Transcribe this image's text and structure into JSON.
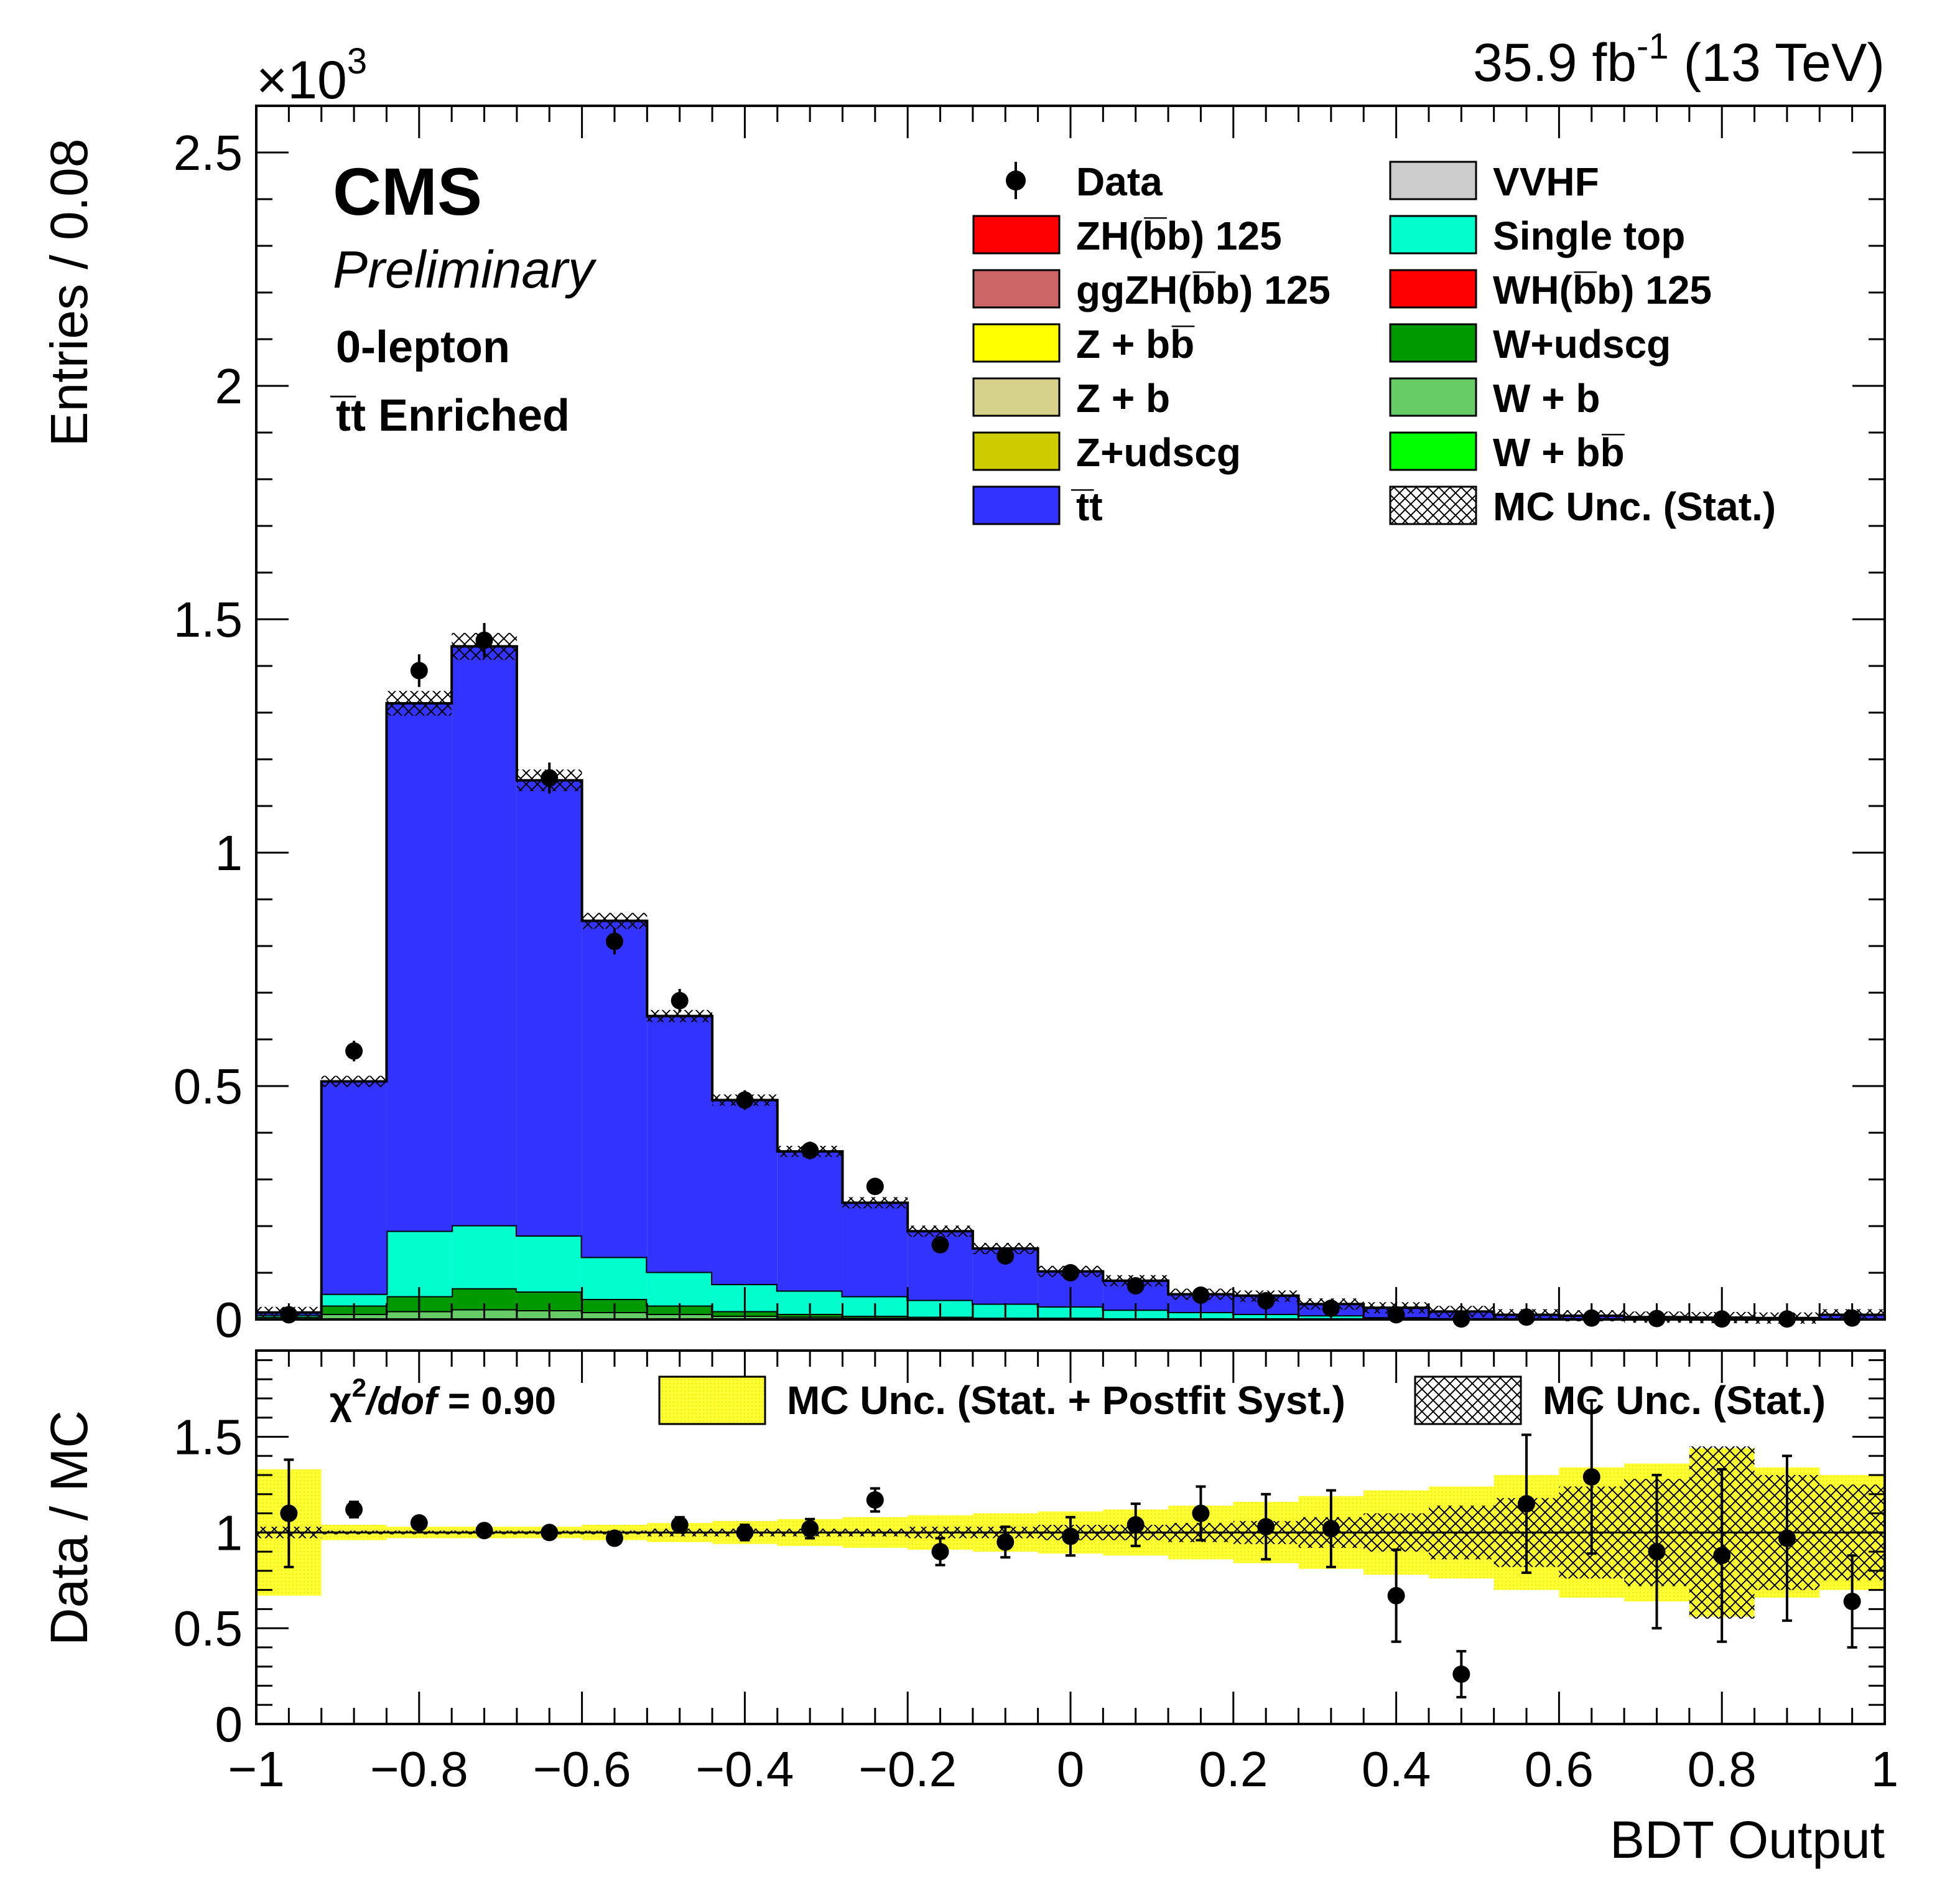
{
  "header": {
    "lumi_label": "35.9 fb",
    "lumi_exp": "-1",
    "energy_label": "(13 TeV)",
    "exponent_base": "×10",
    "exponent_power": "3"
  },
  "annotations": {
    "experiment": "CMS",
    "status": "Preliminary",
    "channel": "0-lepton",
    "region": "t̅t Enriched"
  },
  "chart_data": [
    {
      "type": "bar",
      "stacked": true,
      "xlabel": "BDT Output",
      "ylabel": "Entries / 0.08",
      "xlim": [
        -1,
        1
      ],
      "ylim": [
        0,
        2.6
      ],
      "y_scale_factor": "×10^3",
      "yticks": [
        "0",
        "0.5",
        "1",
        "1.5",
        "2",
        "2.5"
      ],
      "xticks": [
        "−1",
        "−0.8",
        "−0.6",
        "−0.4",
        "−0.2",
        "0",
        "0.2",
        "0.4",
        "0.6",
        "0.8",
        "1"
      ],
      "bin_edges": [
        -1.0,
        -0.92,
        -0.84,
        -0.76,
        -0.68,
        -0.6,
        -0.52,
        -0.44,
        -0.36,
        -0.28,
        -0.2,
        -0.12,
        -0.04,
        0.04,
        0.12,
        0.2,
        0.28,
        0.36,
        0.44,
        0.52,
        0.6,
        0.68,
        0.76,
        0.84,
        0.92,
        1.0
      ],
      "series": [
        {
          "name": "W + b",
          "color": "#66cc66",
          "values": [
            0.002,
            0.012,
            0.018,
            0.022,
            0.02,
            0.016,
            0.012,
            0.008,
            0.006,
            0.004,
            0.003,
            0.002,
            0.002,
            0.001,
            0.001,
            0.001,
            0.001,
            0,
            0,
            0,
            0,
            0,
            0,
            0,
            0
          ]
        },
        {
          "name": "W+udscg",
          "color": "#009900",
          "values": [
            0.004,
            0.018,
            0.032,
            0.045,
            0.04,
            0.028,
            0.018,
            0.01,
            0.006,
            0.004,
            0.003,
            0.002,
            0.002,
            0.001,
            0.001,
            0.001,
            0.001,
            0,
            0,
            0,
            0,
            0,
            0,
            0,
            0
          ]
        },
        {
          "name": "Single top",
          "color": "#00ffcc",
          "values": [
            0.004,
            0.025,
            0.14,
            0.135,
            0.12,
            0.09,
            0.072,
            0.058,
            0.05,
            0.042,
            0.036,
            0.03,
            0.024,
            0.019,
            0.014,
            0.01,
            0.007,
            0.005,
            0.003,
            0.002,
            0.002,
            0.001,
            0.001,
            0.001,
            0.001
          ]
        },
        {
          "name": "t̅t",
          "color": "#3333ff",
          "values": [
            0.005,
            0.455,
            1.13,
            1.24,
            0.975,
            0.72,
            0.548,
            0.394,
            0.298,
            0.2,
            0.147,
            0.118,
            0.075,
            0.062,
            0.038,
            0.039,
            0.024,
            0.02,
            0.014,
            0.008,
            0.006,
            0.004,
            0.003,
            0.002,
            0.009
          ]
        }
      ],
      "mc_total": [
        0.015,
        0.51,
        1.32,
        1.442,
        1.155,
        0.854,
        0.65,
        0.47,
        0.36,
        0.25,
        0.189,
        0.152,
        0.103,
        0.083,
        0.054,
        0.05,
        0.033,
        0.025,
        0.017,
        0.01,
        0.008,
        0.005,
        0.004,
        0.003,
        0.01
      ],
      "data": {
        "name": "Data",
        "values": [
          0.01,
          0.575,
          1.39,
          1.455,
          1.16,
          0.81,
          0.683,
          0.47,
          0.362,
          0.285,
          0.16,
          0.136,
          0.1,
          0.072,
          0.052,
          0.04,
          0.024,
          0.01,
          0.001,
          0.005,
          0.003,
          0.002,
          0.001,
          0.001,
          0.003
        ],
        "errors": [
          0.008,
          0.022,
          0.035,
          0.037,
          0.033,
          0.028,
          0.025,
          0.021,
          0.019,
          0.017,
          0.013,
          0.012,
          0.01,
          0.009,
          0.007,
          0.006,
          0.005,
          0.004,
          0.002,
          0.003,
          0.002,
          0.002,
          0.001,
          0.001,
          0.002
        ]
      },
      "legend": [
        {
          "label": "Data",
          "type": "marker"
        },
        {
          "label": "ZH(b̅b) 125",
          "color": "#ff0000"
        },
        {
          "label": "ggZH(b̅b) 125",
          "color": "#cc6666"
        },
        {
          "label": "Z + bb̅",
          "color": "#ffff00"
        },
        {
          "label": "Z + b",
          "color": "#d7d28b"
        },
        {
          "label": "Z+udscg",
          "color": "#cccc00"
        },
        {
          "label": "t̅t",
          "color": "#3333ff"
        },
        {
          "label": "VVHF",
          "color": "#cccccc"
        },
        {
          "label": "Single top",
          "color": "#00ffcc"
        },
        {
          "label": "WH(b̅b) 125",
          "color": "#ff0000"
        },
        {
          "label": "W+udscg",
          "color": "#009900"
        },
        {
          "label": "W + b",
          "color": "#66cc66"
        },
        {
          "label": "W + bb̅",
          "color": "#00ff00"
        },
        {
          "label": "MC Unc. (Stat.)",
          "type": "hatch"
        }
      ],
      "legend_placement": "top-right"
    },
    {
      "type": "scatter",
      "xlabel": "BDT Output",
      "ylabel": "Data / MC",
      "xlim": [
        -1,
        1
      ],
      "ylim": [
        0,
        1.95
      ],
      "yticks": [
        "0",
        "0.5",
        "1",
        "1.5"
      ],
      "reference_line": 1,
      "chi2_label": "χ",
      "chi2_exp": "2",
      "chi2_dof": "/dof",
      "chi2_value": " = 0.90",
      "ratio": [
        1.1,
        1.12,
        1.05,
        1.01,
        1.0,
        0.97,
        1.04,
        1.0,
        1.02,
        1.17,
        0.9,
        0.95,
        0.98,
        1.04,
        1.1,
        1.03,
        1.02,
        0.67,
        0.26,
        1.15,
        1.29,
        0.9,
        0.88,
        0.97,
        0.64
      ],
      "ratio_err": [
        0.28,
        0.04,
        0.03,
        0.03,
        0.03,
        0.03,
        0.04,
        0.04,
        0.05,
        0.06,
        0.07,
        0.08,
        0.1,
        0.11,
        0.14,
        0.17,
        0.2,
        0.24,
        0.12,
        0.36,
        0.4,
        0.4,
        0.45,
        0.43,
        0.24
      ],
      "syst_band_half": [
        0.33,
        0.04,
        0.03,
        0.03,
        0.03,
        0.04,
        0.05,
        0.06,
        0.07,
        0.08,
        0.09,
        0.1,
        0.11,
        0.12,
        0.14,
        0.16,
        0.19,
        0.22,
        0.24,
        0.3,
        0.34,
        0.36,
        0.44,
        0.34,
        0.3
      ],
      "stat_band_half": [
        0.03,
        0.01,
        0.01,
        0.01,
        0.01,
        0.01,
        0.02,
        0.02,
        0.02,
        0.02,
        0.03,
        0.03,
        0.04,
        0.04,
        0.05,
        0.06,
        0.08,
        0.1,
        0.14,
        0.18,
        0.24,
        0.28,
        0.45,
        0.3,
        0.25
      ],
      "legend": [
        {
          "label": "MC Unc. (Stat. + Postfit Syst.)",
          "type": "band",
          "color": "#ffff33"
        },
        {
          "label": "MC Unc. (Stat.)",
          "type": "hatch"
        }
      ]
    }
  ]
}
